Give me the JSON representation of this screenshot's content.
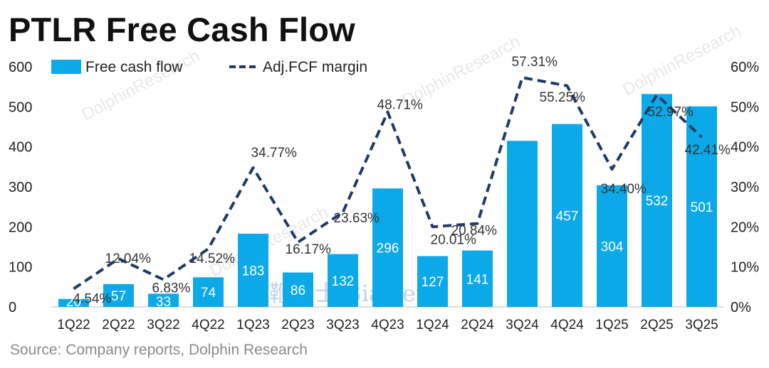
{
  "title": "PTLR Free Cash Flow",
  "source": "Source:  Company reports, Dolphin Research",
  "watermarks": [
    "DolphinResearch",
    "鞭牛士 BiaNews"
  ],
  "colors": {
    "bar": "#0ba9e8",
    "line": "#1f3c68"
  },
  "chart_data": {
    "type": "bar",
    "categories": [
      "1Q22",
      "2Q22",
      "3Q22",
      "4Q22",
      "1Q23",
      "2Q23",
      "3Q23",
      "4Q23",
      "1Q24",
      "2Q24",
      "3Q24",
      "4Q24",
      "1Q25",
      "2Q25",
      "3Q25"
    ],
    "series": [
      {
        "name": "Free cash flow",
        "type": "bar",
        "axis": "left",
        "values": [
          20,
          57,
          33,
          74,
          183,
          86,
          132,
          296,
          127,
          141,
          415,
          457,
          304,
          532,
          501
        ],
        "labels": [
          "20",
          "57",
          "33",
          "74",
          "183",
          "86",
          "132",
          "296",
          "127",
          "141",
          "",
          "457",
          "304",
          "532",
          "501"
        ]
      },
      {
        "name": "Adj.FCF margin",
        "type": "line",
        "style": "dashed",
        "axis": "right",
        "values": [
          4.54,
          12.04,
          6.83,
          14.52,
          34.77,
          16.17,
          23.63,
          48.71,
          20.01,
          20.84,
          57.31,
          55.25,
          34.4,
          52.97,
          42.41
        ],
        "labels": [
          "4.54%",
          "12.04%",
          "6.83%",
          "14.52%",
          "34.77%",
          "16.17%",
          "23.63%",
          "48.71%",
          "20.01%",
          "20.84%",
          "57.31%",
          "55.25%",
          "34.40%",
          "52.97%",
          "42.41%"
        ]
      }
    ],
    "y_left": {
      "ticks": [
        "0",
        "100",
        "200",
        "300",
        "400",
        "500",
        "600"
      ],
      "lim": [
        0,
        600
      ]
    },
    "y_right": {
      "ticks": [
        "0%",
        "10%",
        "20%",
        "30%",
        "40%",
        "50%",
        "60%"
      ],
      "lim": [
        0,
        60
      ]
    },
    "legend": {
      "placement": "top-left",
      "items": [
        "Free cash flow",
        "Adj.FCF margin"
      ]
    },
    "grid": false
  }
}
